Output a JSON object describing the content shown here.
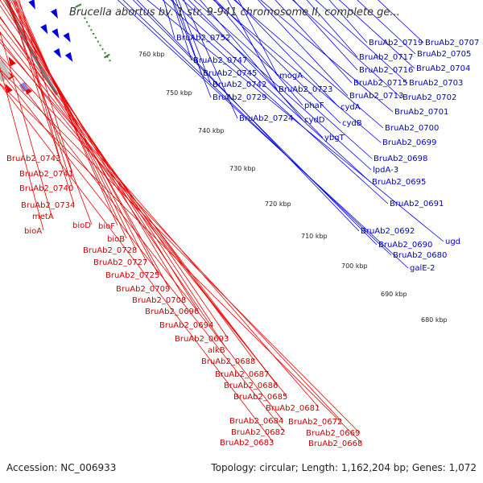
{
  "title": "Brucella abortus bv. 1 str. 9-941 chromosome II, complete ge...",
  "footer": {
    "accession": "Accession: NC_006933",
    "summary": "Topology: circular; Length: 1,162,204 bp; Genes: 1,072"
  },
  "colors": {
    "backbone": "#7a7a7a",
    "forward_strand": "#0000ee",
    "reverse_strand": "#ee0000",
    "tick_dots": "#2a8a2a"
  },
  "kbp_labels": [
    "760 kbp",
    "750 kbp",
    "740 kbp",
    "730 kbp",
    "720 kbp",
    "710 kbp",
    "700 kbp",
    "690 kbp",
    "680 kbp"
  ],
  "right_labels": [
    "BruAb2_0752",
    "BruAb2_0747",
    "BruAb2_0745",
    "mogA",
    "BruAb2_0742",
    "BruAb2_0729",
    "BruAb2_0723",
    "BruAb2_0724",
    "BruAb2_0719",
    "BruAb2_0707",
    "BruAb2_0717",
    "BruAb2_0705",
    "BruAb2_0716",
    "BruAb2_0704",
    "BruAb2_0715",
    "BruAb2_0703",
    "BruAb2_0713",
    "BruAb2_0702",
    "phaF",
    "cydA",
    "cydD",
    "BruAb2_0701",
    "cydB",
    "BruAb2_0700",
    "ybgT",
    "BruAb2_0699",
    "BruAb2_0698",
    "lpdA-3",
    "BruAb2_0695",
    "BruAb2_0691",
    "BruAb2_0692",
    "BruAb2_0690",
    "ugd",
    "BruAb2_0680",
    "galE-2"
  ],
  "left_labels": [
    "BruAb2_0743",
    "BruAb2_0741",
    "BruAb2_0740",
    "BruAb2_0734",
    "metA",
    "bioA",
    "bioD",
    "bioF",
    "bioB",
    "BruAb2_0728",
    "BruAb2_0727",
    "BruAb2_0725",
    "BruAb2_0709",
    "BruAb2_0708",
    "BruAb2_0696",
    "BruAb2_0694",
    "BruAb2_0693",
    "alkB",
    "BruAb2_0688",
    "BruAb2_0687",
    "BruAb2_0686",
    "BruAb2_0685",
    "BruAb2_0681",
    "BruAb2_0684",
    "BruAb2_0672",
    "BruAb2_0682",
    "BruAb2_0669",
    "BruAb2_0683",
    "BruAb2_0668"
  ]
}
